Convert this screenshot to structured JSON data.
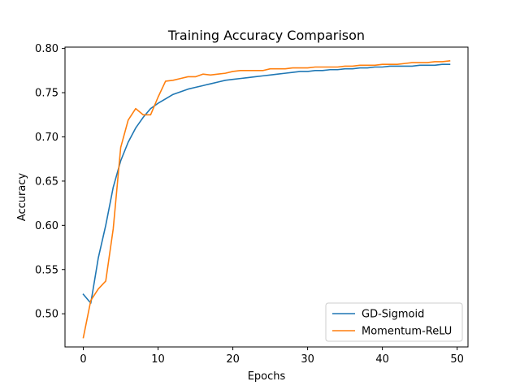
{
  "chart_data": {
    "type": "line",
    "title": "Training Accuracy Comparison",
    "xlabel": "Epochs",
    "ylabel": "Accuracy",
    "xlim": [
      -2.45,
      51.45
    ],
    "ylim": [
      0.4625,
      0.8015
    ],
    "xticks": [
      0,
      10,
      20,
      30,
      40,
      50
    ],
    "yticks": [
      0.5,
      0.55,
      0.6,
      0.65,
      0.7,
      0.75,
      0.8
    ],
    "ytick_labels": [
      "0.50",
      "0.55",
      "0.60",
      "0.65",
      "0.70",
      "0.75",
      "0.80"
    ],
    "grid": false,
    "legend_position": "lower-right",
    "x": [
      0,
      1,
      2,
      3,
      4,
      5,
      6,
      7,
      8,
      9,
      10,
      11,
      12,
      13,
      14,
      15,
      16,
      17,
      18,
      19,
      20,
      21,
      22,
      23,
      24,
      25,
      26,
      27,
      28,
      29,
      30,
      31,
      32,
      33,
      34,
      35,
      36,
      37,
      38,
      39,
      40,
      41,
      42,
      43,
      44,
      45,
      46,
      47,
      48,
      49
    ],
    "series": [
      {
        "name": "GD-Sigmoid",
        "color": "#1f77b4",
        "values": [
          0.522,
          0.512,
          0.563,
          0.6,
          0.643,
          0.673,
          0.694,
          0.71,
          0.722,
          0.732,
          0.738,
          0.743,
          0.748,
          0.751,
          0.754,
          0.756,
          0.758,
          0.76,
          0.762,
          0.764,
          0.765,
          0.766,
          0.767,
          0.768,
          0.769,
          0.77,
          0.771,
          0.772,
          0.773,
          0.774,
          0.774,
          0.775,
          0.775,
          0.776,
          0.776,
          0.777,
          0.777,
          0.778,
          0.778,
          0.779,
          0.779,
          0.78,
          0.78,
          0.78,
          0.78,
          0.781,
          0.781,
          0.781,
          0.782,
          0.782
        ]
      },
      {
        "name": "Momentum-ReLU",
        "color": "#ff7f0e",
        "values": [
          0.473,
          0.515,
          0.528,
          0.537,
          0.596,
          0.688,
          0.719,
          0.732,
          0.725,
          0.725,
          0.745,
          0.763,
          0.764,
          0.766,
          0.768,
          0.768,
          0.771,
          0.77,
          0.771,
          0.772,
          0.774,
          0.775,
          0.775,
          0.775,
          0.775,
          0.777,
          0.777,
          0.777,
          0.778,
          0.778,
          0.778,
          0.779,
          0.779,
          0.779,
          0.779,
          0.78,
          0.78,
          0.781,
          0.781,
          0.781,
          0.782,
          0.782,
          0.782,
          0.783,
          0.784,
          0.784,
          0.784,
          0.785,
          0.785,
          0.786
        ]
      }
    ]
  }
}
